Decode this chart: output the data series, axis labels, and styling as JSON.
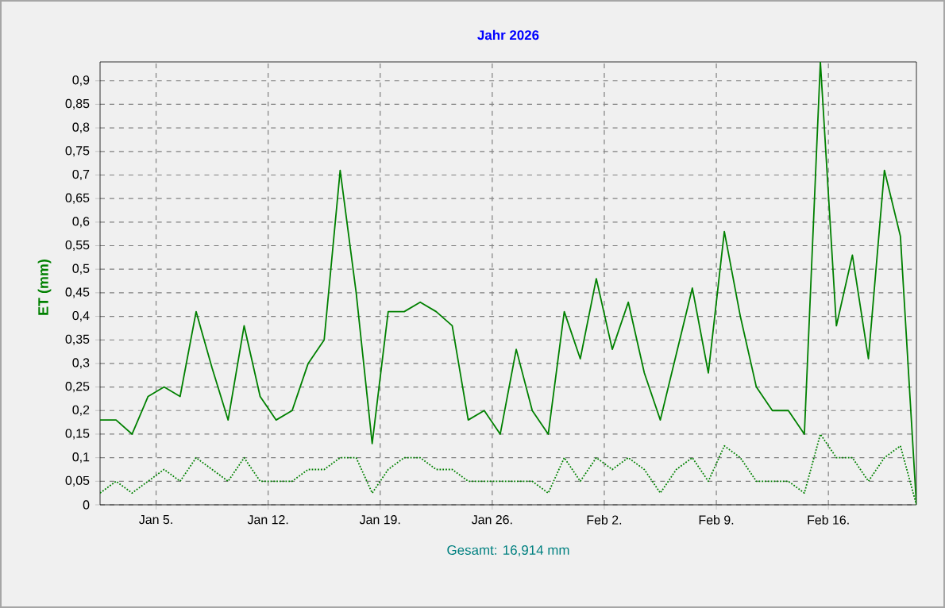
{
  "chart_data": {
    "type": "line",
    "title": "Jahr 2026",
    "ylabel": "ET (mm)",
    "annotations": [
      "Gesamt: 16,914 mm"
    ],
    "x": [
      "2026-01-01T12:00",
      "2026-01-02T12:00",
      "2026-01-03T12:00",
      "2026-01-04T12:00",
      "2026-01-05T12:00",
      "2026-01-06T12:00",
      "2026-01-07T12:00",
      "2026-01-08T12:00",
      "2026-01-09T12:00",
      "2026-01-10T12:00",
      "2026-01-11T12:00",
      "2026-01-12T12:00",
      "2026-01-13T12:00",
      "2026-01-14T12:00",
      "2026-01-15T12:00",
      "2026-01-16T12:00",
      "2026-01-17T12:00",
      "2026-01-18T12:00",
      "2026-01-19T12:00",
      "2026-01-20T12:00",
      "2026-01-21T12:00",
      "2026-01-22T12:00",
      "2026-01-23T12:00",
      "2026-01-24T12:00",
      "2026-01-25T12:00",
      "2026-01-26T12:00",
      "2026-01-27T12:00",
      "2026-01-28T12:00",
      "2026-01-29T12:00",
      "2026-01-30T12:00",
      "2026-01-31T12:00",
      "2026-02-01T12:00",
      "2026-02-02T12:00",
      "2026-02-03T12:00",
      "2026-02-04T12:00",
      "2026-02-05T12:00",
      "2026-02-06T12:00",
      "2026-02-07T12:00",
      "2026-02-08T12:00",
      "2026-02-09T12:00",
      "2026-02-10T12:00",
      "2026-02-11T12:00",
      "2026-02-12T12:00",
      "2026-02-13T12:00",
      "2026-02-14T12:00",
      "2026-02-15T12:00",
      "2026-02-16T12:00",
      "2026-02-17T12:00",
      "2026-02-18T12:00",
      "2026-02-19T12:00",
      "2026-02-20T12:00",
      "2026-02-21T12:00"
    ],
    "series": [
      {
        "color": "#008000",
        "line_style": "solid",
        "values": [
          0.18,
          0.18,
          0.15,
          0.23,
          0.25,
          0.23,
          0.41,
          0.29,
          0.18,
          0.38,
          0.23,
          0.18,
          0.2,
          0.3,
          0.35,
          0.71,
          0.45,
          0.13,
          0.41,
          0.41,
          0.43,
          0.41,
          0.38,
          0.18,
          0.2,
          0.15,
          0.33,
          0.2,
          0.15,
          0.41,
          0.31,
          0.48,
          0.33,
          0.43,
          0.28,
          0.18,
          0.32,
          0.46,
          0.28,
          0.58,
          0.4,
          0.25,
          0.2,
          0.2,
          0.15,
          0.94,
          0.38,
          0.53,
          0.31,
          0.71,
          0.57,
          0
        ]
      },
      {
        "color": "#008000",
        "line_style": "dotted",
        "values": [
          0.025,
          0.05,
          0.025,
          0.05,
          0.075,
          0.05,
          0.1,
          0.075,
          0.05,
          0.1,
          0.05,
          0.05,
          0.05,
          0.075,
          0.075,
          0.1,
          0.1,
          0.025,
          0.075,
          0.1,
          0.1,
          0.075,
          0.075,
          0.05,
          0.05,
          0.05,
          0.05,
          0.05,
          0.025,
          0.1,
          0.05,
          0.1,
          0.075,
          0.1,
          0.075,
          0.025,
          0.075,
          0.1,
          0.05,
          0.125,
          0.1,
          0.05,
          0.05,
          0.05,
          0.025,
          0.15,
          0.1,
          0.1,
          0.05,
          0.1,
          0.125,
          0
        ]
      }
    ],
    "xlim": [
      "2026-01-01T12:00",
      "2026-02-21T12:00"
    ],
    "xticks": [
      {
        "value": "2026-01-05",
        "label": "Jan 5."
      },
      {
        "value": "2026-01-12",
        "label": "Jan 12."
      },
      {
        "value": "2026-01-19",
        "label": "Jan 19."
      },
      {
        "value": "2026-01-26",
        "label": "Jan 26."
      },
      {
        "value": "2026-02-02",
        "label": "Feb 2."
      },
      {
        "value": "2026-02-09",
        "label": "Feb 9."
      },
      {
        "value": "2026-02-16",
        "label": "Feb 16."
      }
    ],
    "ylim": [
      0,
      0.94
    ],
    "yticks": [
      0,
      {
        "value": 0.05,
        "label": "0,05"
      },
      {
        "value": 0.1,
        "label": "0,1"
      },
      {
        "value": 0.15,
        "label": "0,15"
      },
      {
        "value": 0.2,
        "label": "0,2"
      },
      {
        "value": 0.25,
        "label": "0,25"
      },
      {
        "value": 0.3,
        "label": "0,3"
      },
      {
        "value": 0.35,
        "label": "0,35"
      },
      {
        "value": 0.4,
        "label": "0,4"
      },
      {
        "value": 0.45,
        "label": "0,45"
      },
      {
        "value": 0.5,
        "label": "0,5"
      },
      {
        "value": 0.55,
        "label": "0,55"
      },
      {
        "value": 0.6,
        "label": "0,6"
      },
      {
        "value": 0.65,
        "label": "0,65"
      },
      {
        "value": 0.7,
        "label": "0,7"
      },
      {
        "value": 0.75,
        "label": "0,75"
      },
      {
        "value": 0.8,
        "label": "0,8"
      },
      {
        "value": 0.85,
        "label": "0,85"
      },
      {
        "value": 0.9,
        "label": "0,9"
      }
    ],
    "grid": true
  }
}
